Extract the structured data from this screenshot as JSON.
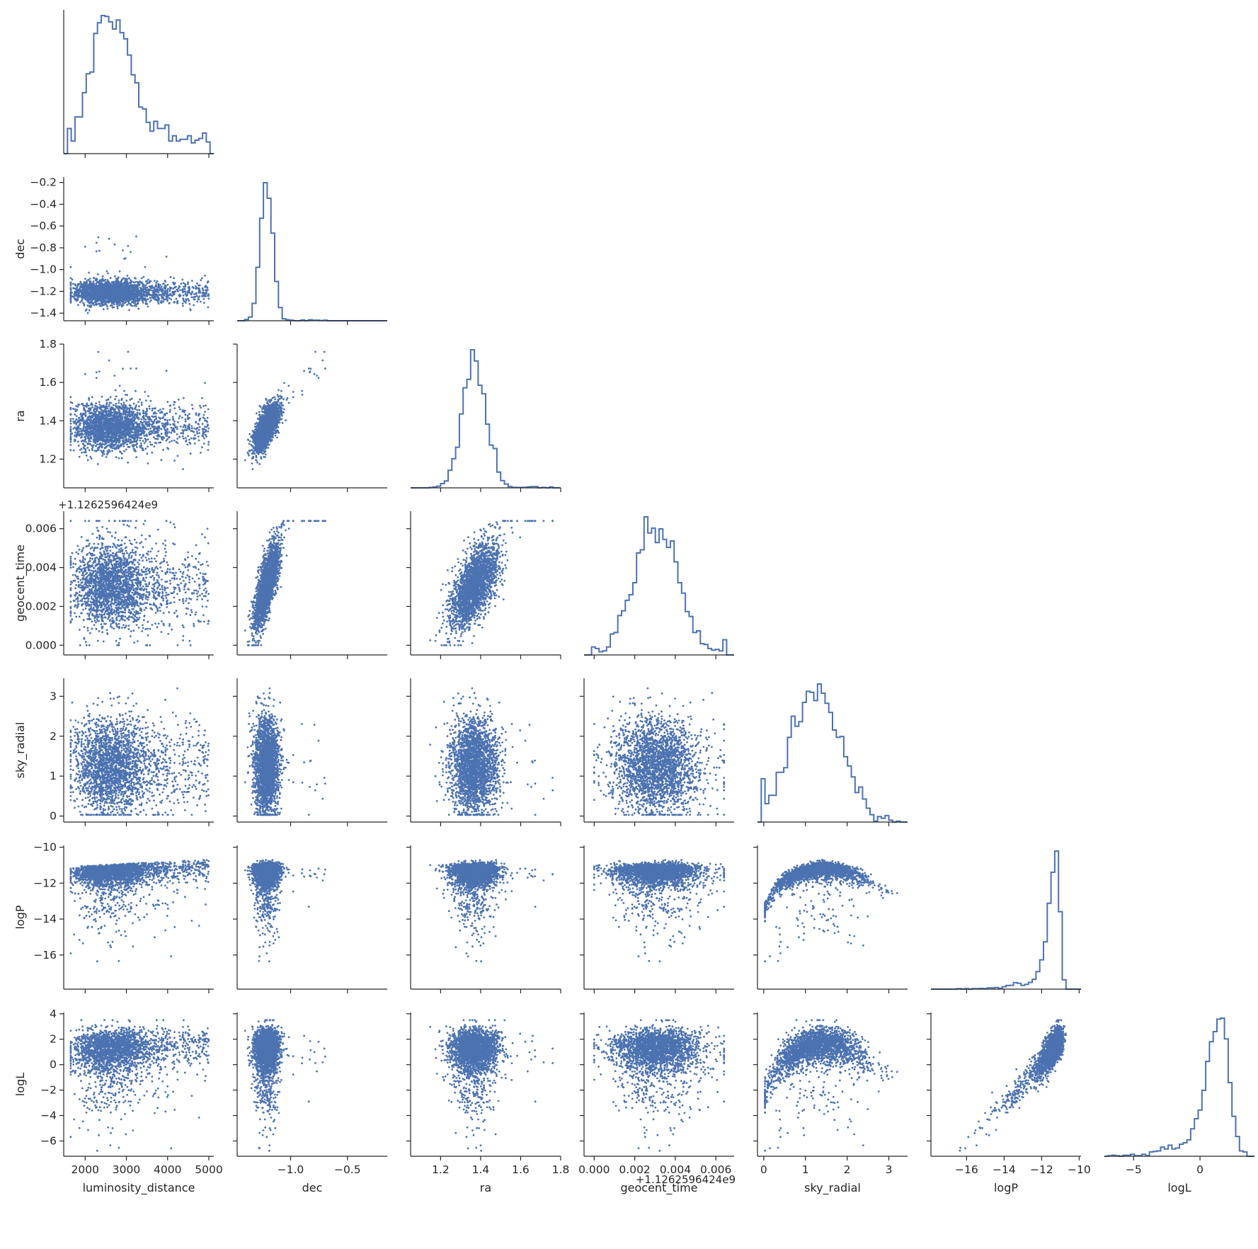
{
  "figure": {
    "type": "pairplot-corner",
    "variables": [
      "luminosity_distance",
      "dec",
      "ra",
      "geocent_time",
      "sky_radial",
      "logP",
      "logL"
    ],
    "colors": {
      "accent": "#4c72b0",
      "axis": "#262626",
      "background": "#ffffff"
    },
    "offset_text": "+1.1262596424e9"
  },
  "chart_data": {
    "type": "scatter",
    "layout": "corner pair plot: histograms on diagonal, pairwise scatter below diagonal",
    "variables": [
      {
        "name": "luminosity_distance",
        "range": [
          1480,
          5120
        ],
        "ticks": [
          2000,
          3000,
          4000,
          5000
        ],
        "tick_labels": [
          "2000",
          "3000",
          "4000",
          "5000"
        ],
        "mean": 2600,
        "sd": 600,
        "hist_shape": "right-skewed, peak near 2400, long flat tail to 5000"
      },
      {
        "name": "dec",
        "range": [
          -1.47,
          -0.15
        ],
        "ticks": [
          -1.4,
          -1.2,
          -1.0,
          -0.8,
          -0.6,
          -0.4,
          -0.2
        ],
        "tick_labels": [
          "−1.4",
          "−1.2",
          "−1.0",
          "−0.8",
          "−0.6",
          "−0.4",
          "−0.2"
        ],
        "x_ticks": [
          -1.0,
          -0.5
        ],
        "x_tick_labels": [
          "−1.0",
          "−0.5"
        ],
        "mean": -1.2,
        "sd": 0.06
      },
      {
        "name": "ra",
        "range": [
          1.05,
          1.8
        ],
        "ticks": [
          1.2,
          1.4,
          1.6,
          1.8
        ],
        "tick_labels": [
          "1.2",
          "1.4",
          "1.6",
          "1.8"
        ],
        "mean": 1.38,
        "sd": 0.06
      },
      {
        "name": "geocent_time",
        "range": [
          -0.0005,
          0.0069
        ],
        "ticks": [
          0.0,
          0.002,
          0.004,
          0.006
        ],
        "tick_labels": [
          "0.000",
          "0.002",
          "0.004",
          "0.006"
        ],
        "offset": "+1.1262596424e9",
        "mean": 0.0031,
        "sd": 0.0011
      },
      {
        "name": "sky_radial",
        "range": [
          -0.15,
          3.45
        ],
        "ticks": [
          0,
          1,
          2,
          3
        ],
        "tick_labels": [
          "0",
          "1",
          "2",
          "3"
        ],
        "mean": 1.3,
        "sd": 0.6
      },
      {
        "name": "logP",
        "range": [
          -17.9,
          -9.9
        ],
        "ticks": [
          -16,
          -14,
          -12,
          -10
        ],
        "tick_labels": [
          "−16",
          "−14",
          "−12",
          "−10"
        ],
        "mean": -11.6,
        "sd": 0.6,
        "hist_shape": "left-skewed, sharp peak near -10.9"
      },
      {
        "name": "logL",
        "range": [
          -7.2,
          4.1
        ],
        "ticks": [
          -6,
          -4,
          -2,
          0,
          2,
          4
        ],
        "tick_labels": [
          "−6",
          "−4",
          "−2",
          "0",
          "2",
          "4"
        ],
        "x_ticks": [
          -5,
          0
        ],
        "x_tick_labels": [
          "−5",
          "0"
        ],
        "mean": 1.0,
        "sd": 1.1,
        "hist_shape": "left-skewed, peak near 1.3"
      }
    ],
    "relations": [
      {
        "x": "dec",
        "y": "ra",
        "trend": "positive correlation"
      },
      {
        "x": "dec",
        "y": "geocent_time",
        "trend": "strong positive linear correlation"
      },
      {
        "x": "ra",
        "y": "geocent_time",
        "trend": "positive correlation"
      },
      {
        "x": "sky_radial",
        "y": "logP",
        "trend": "concave arch, max about -10.8 near sky_radial 1.3"
      },
      {
        "x": "sky_radial",
        "y": "logL",
        "trend": "concave arch, max about 3.5 near sky_radial 1.5"
      },
      {
        "x": "logP",
        "y": "logL",
        "trend": "positive correlation"
      }
    ],
    "grid": false,
    "legend": "none",
    "marker": "small dots"
  }
}
